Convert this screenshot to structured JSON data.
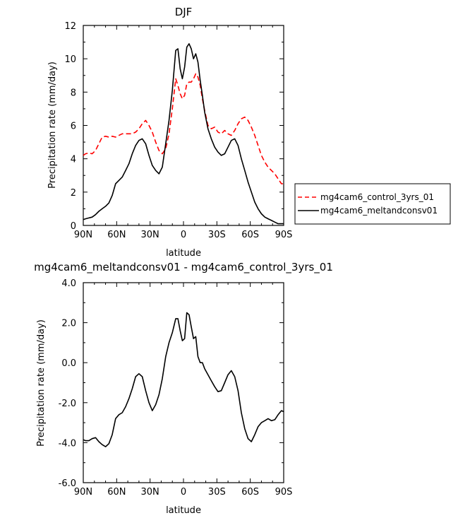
{
  "chart_data": [
    {
      "type": "line",
      "title": "DJF",
      "xlabel": "latitude",
      "ylabel": "Precipitation rate (mm/day)",
      "xlim": [
        90,
        -90
      ],
      "ylim": [
        0,
        12
      ],
      "x_tick_labels": [
        "90N",
        "60N",
        "30N",
        "0",
        "30S",
        "60S",
        "90S"
      ],
      "x_tick_values": [
        90,
        60,
        30,
        0,
        -30,
        -60,
        -90
      ],
      "y_tick_labels": [
        "0",
        "2",
        "4",
        "6",
        "8",
        "10",
        "12"
      ],
      "y_tick_values": [
        0,
        2,
        4,
        6,
        8,
        10,
        12
      ],
      "legend_position": "right",
      "series": [
        {
          "name": "mg4cam6_control_3yrs_01",
          "color": "#ff0000",
          "style": "dashed",
          "x": [
            90,
            88,
            85,
            82,
            79,
            76,
            73,
            70,
            67,
            64,
            61,
            58,
            55,
            52,
            49,
            46,
            43,
            40,
            37,
            34,
            31,
            28,
            25,
            22,
            19,
            16,
            13,
            10,
            7,
            5,
            3,
            1,
            -1,
            -3,
            -5,
            -7,
            -9,
            -11,
            -13,
            -15,
            -17,
            -19,
            -22,
            -25,
            -28,
            -31,
            -34,
            -37,
            -40,
            -43,
            -46,
            -49,
            -52,
            -55,
            -58,
            -61,
            -64,
            -67,
            -70,
            -73,
            -76,
            -79,
            -82,
            -85,
            -88,
            -90
          ],
          "y": [
            4.2,
            4.3,
            4.35,
            4.3,
            4.5,
            4.9,
            5.3,
            5.35,
            5.3,
            5.35,
            5.3,
            5.4,
            5.5,
            5.5,
            5.5,
            5.5,
            5.6,
            5.8,
            6.1,
            6.3,
            6.0,
            5.6,
            5.0,
            4.5,
            4.3,
            4.6,
            5.5,
            7.0,
            8.8,
            8.4,
            7.9,
            7.6,
            7.8,
            8.5,
            8.6,
            8.6,
            8.8,
            9.1,
            8.9,
            8.4,
            7.6,
            6.9,
            6.0,
            5.8,
            5.9,
            5.6,
            5.5,
            5.7,
            5.5,
            5.4,
            5.7,
            6.1,
            6.4,
            6.5,
            6.3,
            5.9,
            5.4,
            4.8,
            4.2,
            3.8,
            3.5,
            3.3,
            3.1,
            2.8,
            2.5,
            2.5
          ]
        },
        {
          "name": "mg4cam6_meltandconsv01",
          "color": "#000000",
          "style": "solid",
          "x": [
            90,
            88,
            85,
            82,
            79,
            76,
            73,
            70,
            67,
            64,
            61,
            58,
            55,
            52,
            49,
            46,
            43,
            40,
            37,
            34,
            31,
            28,
            25,
            22,
            19,
            16,
            13,
            10,
            7,
            5,
            3,
            1,
            -1,
            -3,
            -5,
            -7,
            -9,
            -11,
            -13,
            -15,
            -17,
            -19,
            -22,
            -25,
            -28,
            -31,
            -34,
            -37,
            -40,
            -43,
            -46,
            -49,
            -52,
            -55,
            -58,
            -61,
            -64,
            -67,
            -70,
            -73,
            -76,
            -79,
            -82,
            -85,
            -88,
            -90
          ],
          "y": [
            0.35,
            0.4,
            0.45,
            0.5,
            0.65,
            0.85,
            1.0,
            1.15,
            1.35,
            1.8,
            2.5,
            2.7,
            2.9,
            3.3,
            3.7,
            4.3,
            4.8,
            5.1,
            5.2,
            4.9,
            4.2,
            3.6,
            3.3,
            3.1,
            3.5,
            4.9,
            6.3,
            8.1,
            10.5,
            10.6,
            9.4,
            8.8,
            9.5,
            10.7,
            10.9,
            10.6,
            10.0,
            10.3,
            9.8,
            8.7,
            7.8,
            6.8,
            5.8,
            5.2,
            4.7,
            4.4,
            4.2,
            4.3,
            4.7,
            5.1,
            5.2,
            4.8,
            4.0,
            3.3,
            2.6,
            2.0,
            1.4,
            1.0,
            0.7,
            0.5,
            0.4,
            0.3,
            0.2,
            0.1,
            0.1,
            0.1
          ]
        }
      ]
    },
    {
      "type": "line",
      "title": "mg4cam6_meltandconsv01 - mg4cam6_control_3yrs_01",
      "xlabel": "latitude",
      "ylabel": "Precipitation rate (mm/day)",
      "xlim": [
        90,
        -90
      ],
      "ylim": [
        -6,
        4
      ],
      "x_tick_labels": [
        "90N",
        "60N",
        "30N",
        "0",
        "30S",
        "60S",
        "90S"
      ],
      "x_tick_values": [
        90,
        60,
        30,
        0,
        -30,
        -60,
        -90
      ],
      "y_tick_labels": [
        "-6.0",
        "-4.0",
        "-2.0",
        "0.0",
        "2.0",
        "4.0"
      ],
      "y_tick_values": [
        -6,
        -4,
        -2,
        0,
        2,
        4
      ],
      "series": [
        {
          "name": "",
          "color": "#000000",
          "style": "solid",
          "x": [
            90,
            88,
            85,
            82,
            79,
            76,
            73,
            70,
            67,
            64,
            61,
            58,
            55,
            52,
            49,
            46,
            43,
            40,
            37,
            34,
            31,
            28,
            25,
            22,
            19,
            16,
            13,
            10,
            7,
            5,
            3,
            1,
            -1,
            -3,
            -5,
            -7,
            -9,
            -11,
            -13,
            -15,
            -17,
            -19,
            -22,
            -25,
            -28,
            -31,
            -34,
            -37,
            -40,
            -43,
            -46,
            -49,
            -52,
            -55,
            -58,
            -61,
            -64,
            -67,
            -70,
            -73,
            -76,
            -79,
            -82,
            -85,
            -88,
            -90
          ],
          "y": [
            -3.85,
            -3.9,
            -3.9,
            -3.8,
            -3.75,
            -3.95,
            -4.1,
            -4.2,
            -4.05,
            -3.6,
            -2.8,
            -2.6,
            -2.5,
            -2.2,
            -1.8,
            -1.3,
            -0.7,
            -0.55,
            -0.7,
            -1.4,
            -2.0,
            -2.4,
            -2.1,
            -1.6,
            -0.8,
            0.3,
            1.0,
            1.5,
            2.2,
            2.2,
            1.6,
            1.1,
            1.2,
            2.5,
            2.4,
            1.8,
            1.2,
            1.3,
            0.3,
            0.0,
            0.0,
            -0.3,
            -0.6,
            -0.9,
            -1.2,
            -1.45,
            -1.4,
            -1.0,
            -0.6,
            -0.4,
            -0.7,
            -1.4,
            -2.5,
            -3.3,
            -3.8,
            -3.95,
            -3.6,
            -3.2,
            -3.0,
            -2.9,
            -2.8,
            -2.9,
            -2.85,
            -2.6,
            -2.4,
            -2.45
          ]
        }
      ]
    }
  ]
}
